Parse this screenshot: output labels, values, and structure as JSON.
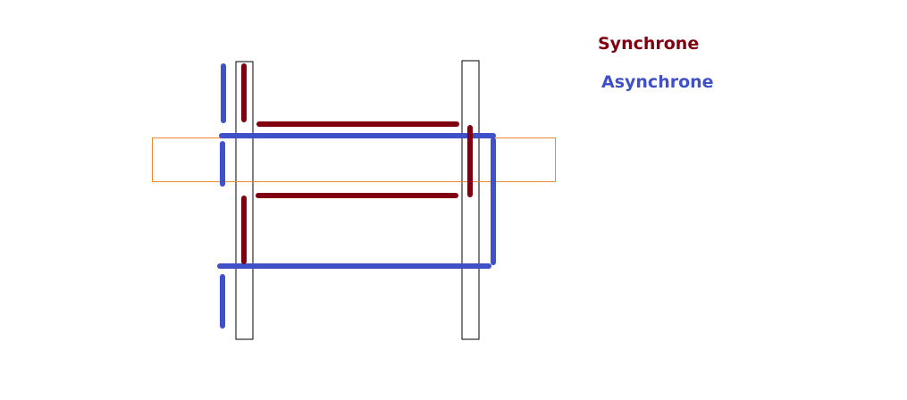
{
  "legend": {
    "synchrone": "Synchrone",
    "asynchrone": "Asynchrone"
  },
  "colors": {
    "synchrone": "#800010",
    "asynchrone": "#4050c8",
    "highlight_box": "#ee8833",
    "frame_outline": "#000000",
    "background": "#ffffff"
  }
}
